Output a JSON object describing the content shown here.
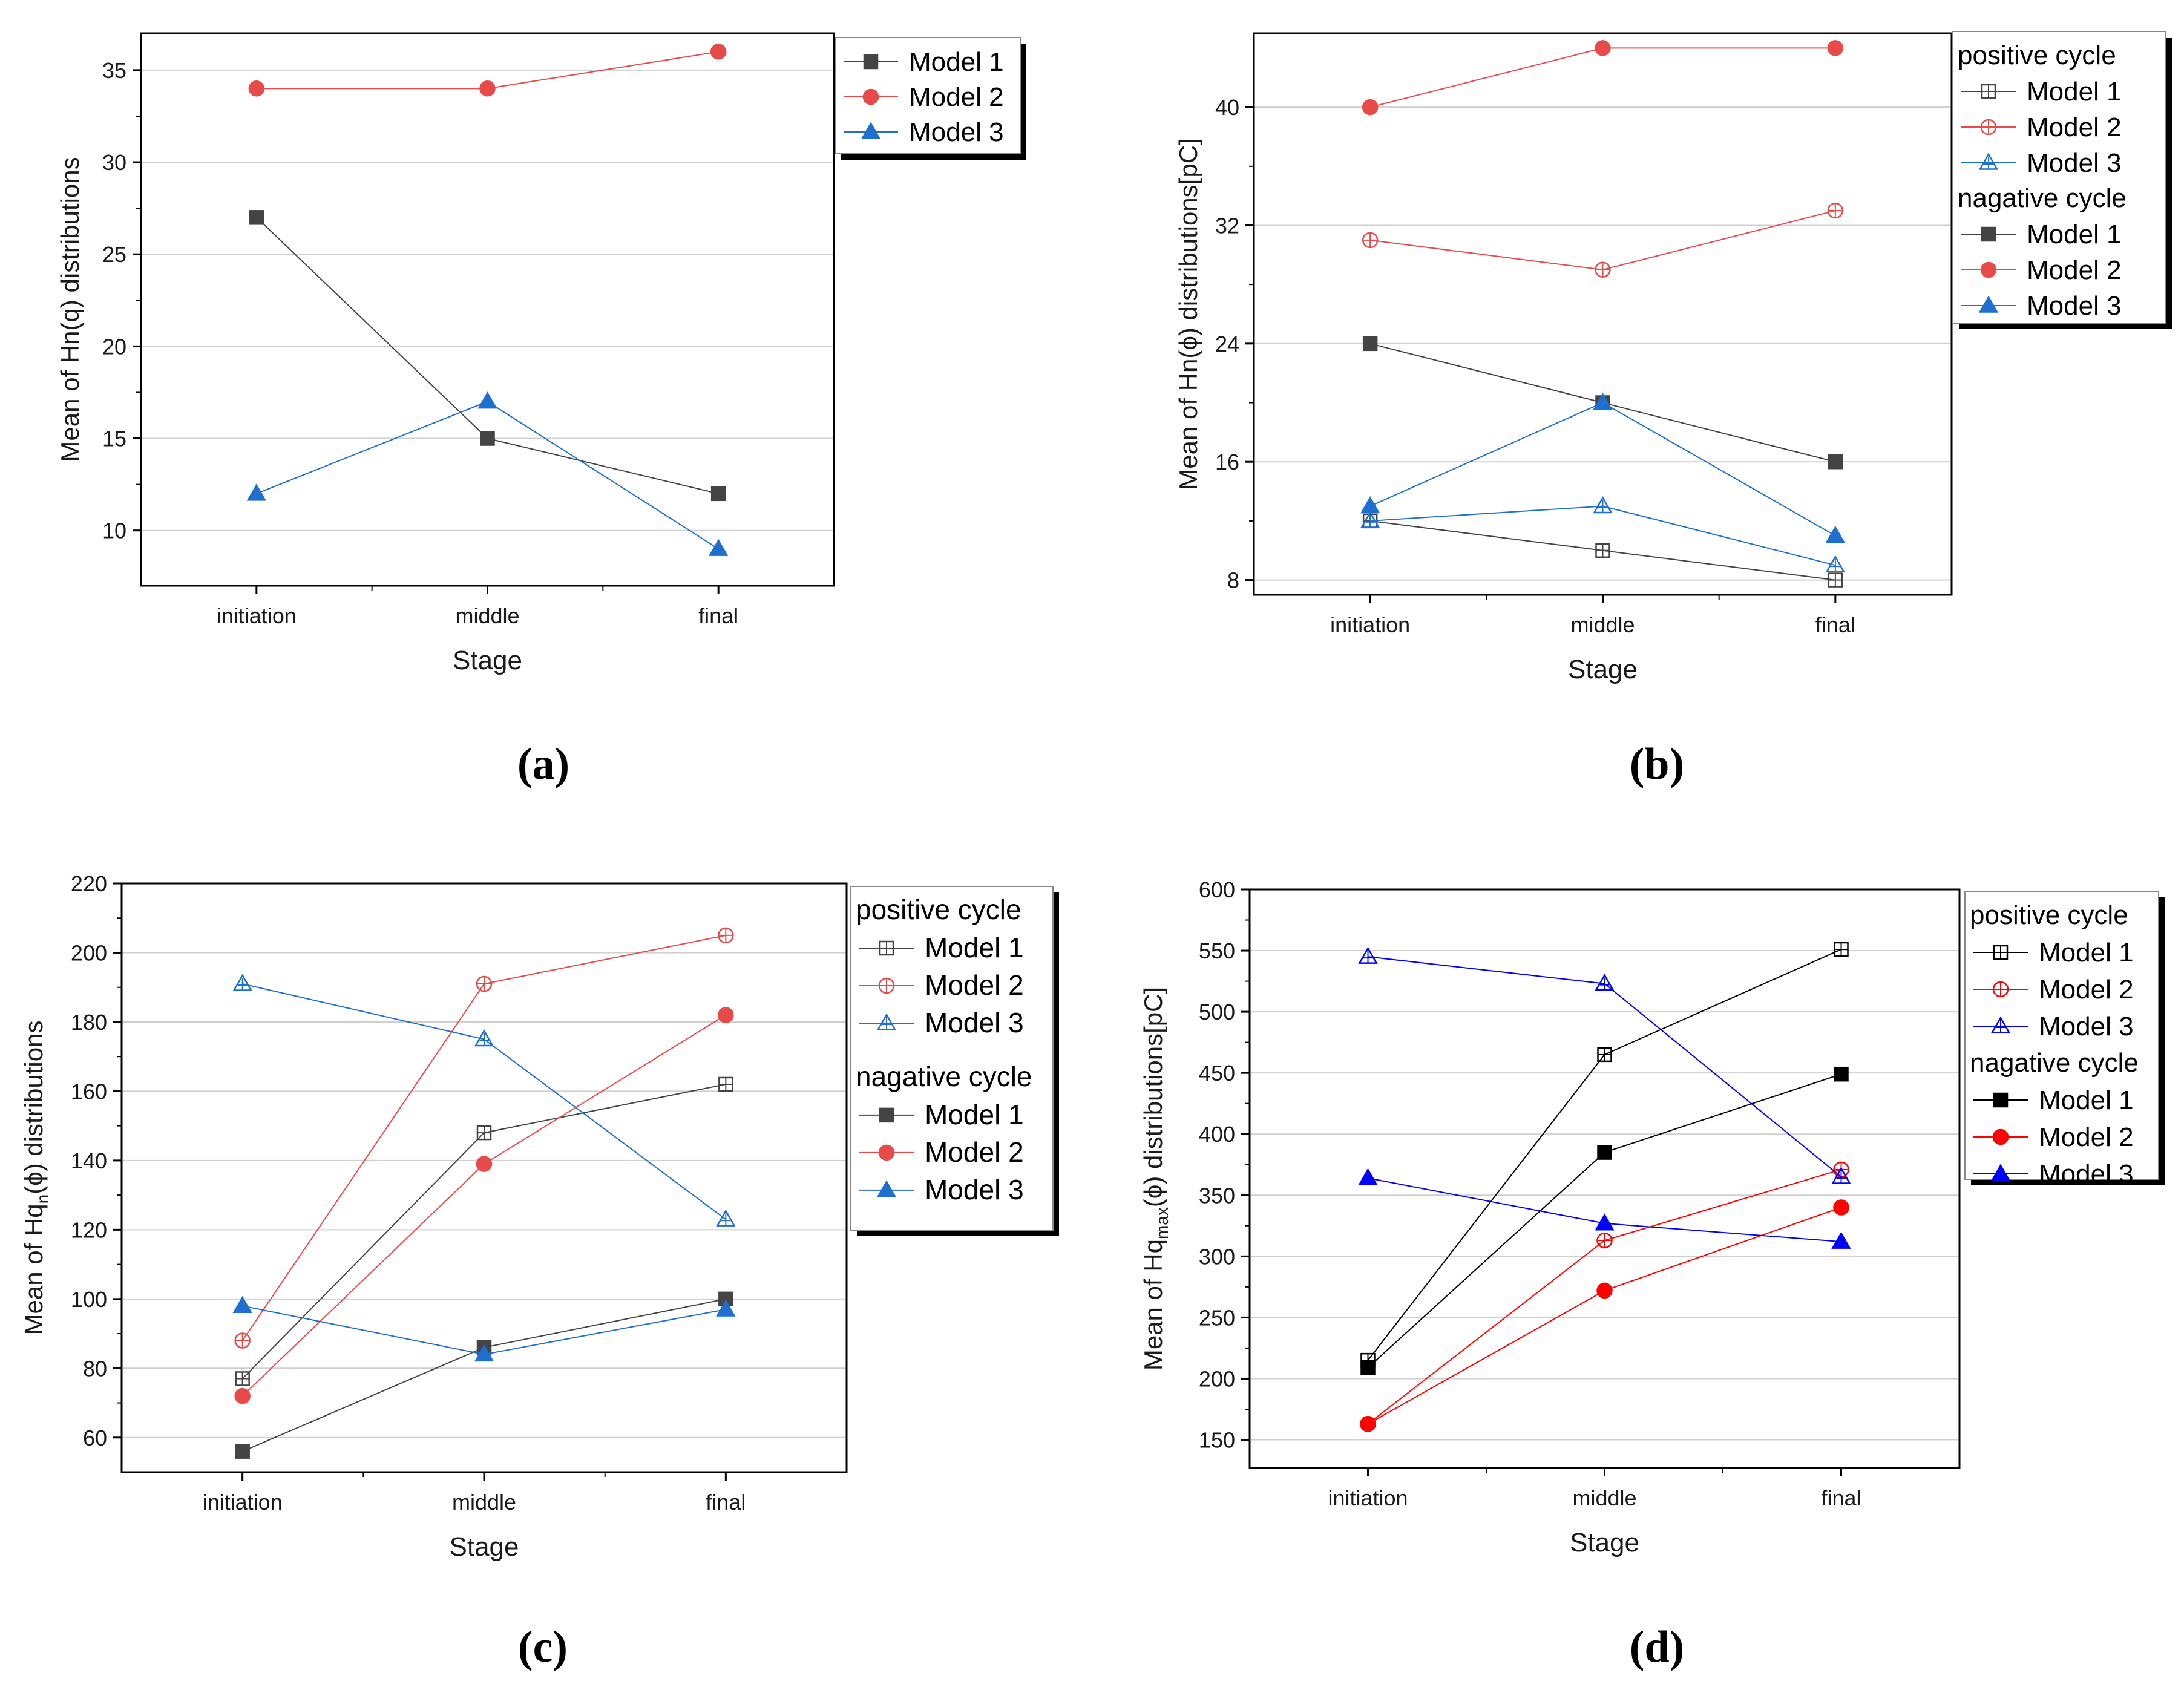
{
  "colors": {
    "model1": "#444444",
    "model1_solid": "#000000",
    "model2": "#e84a4a",
    "model2_solid": "#ff0000",
    "model3": "#1f6fd1",
    "model3_solid": "#0000ff",
    "grid": "#cfcfcf"
  },
  "chart_data": [
    {
      "id": "a",
      "panel_label": "(a)",
      "type": "line",
      "categories": [
        "initiation",
        "middle",
        "final"
      ],
      "xlabel": "Stage",
      "ylabel": "Mean of Hn(q) distributions",
      "ylim": [
        7,
        37
      ],
      "yticks": [
        10,
        15,
        20,
        25,
        30,
        35
      ],
      "legend_groups": [],
      "series": [
        {
          "name": "Model 1",
          "values": [
            27,
            15,
            12
          ],
          "color": "#444444",
          "marker": "square",
          "fill": "solid"
        },
        {
          "name": "Model 2",
          "values": [
            34,
            34,
            36
          ],
          "color": "#e84a4a",
          "marker": "circle",
          "fill": "solid"
        },
        {
          "name": "Model 3",
          "values": [
            12,
            17,
            9
          ],
          "color": "#1f6fd1",
          "marker": "triangle",
          "fill": "solid"
        }
      ]
    },
    {
      "id": "b",
      "panel_label": "(b)",
      "type": "line",
      "categories": [
        "initiation",
        "middle",
        "final"
      ],
      "xlabel": "Stage",
      "ylabel": "Mean of Hn(ϕ) distributions[pC]",
      "ylim": [
        7,
        45
      ],
      "yticks": [
        8,
        16,
        24,
        32,
        40
      ],
      "legend_groups": [
        "positive cycle",
        "nagative cycle"
      ],
      "series": [
        {
          "group": "positive cycle",
          "name": "Model 1",
          "values": [
            12,
            10,
            8
          ],
          "color": "#444444",
          "marker": "square",
          "fill": "open"
        },
        {
          "group": "positive cycle",
          "name": "Model 2",
          "values": [
            31,
            29,
            33
          ],
          "color": "#e84a4a",
          "marker": "circle",
          "fill": "open"
        },
        {
          "group": "positive cycle",
          "name": "Model 3",
          "values": [
            12,
            13,
            9
          ],
          "color": "#1f6fd1",
          "marker": "triangle",
          "fill": "open"
        },
        {
          "group": "nagative cycle",
          "name": "Model 1",
          "values": [
            24,
            20,
            16
          ],
          "color": "#444444",
          "marker": "square",
          "fill": "solid"
        },
        {
          "group": "nagative cycle",
          "name": "Model 2",
          "values": [
            40,
            44,
            44
          ],
          "color": "#e84a4a",
          "marker": "circle",
          "fill": "solid"
        },
        {
          "group": "nagative cycle",
          "name": "Model 3",
          "values": [
            13,
            20,
            11
          ],
          "color": "#1f6fd1",
          "marker": "triangle",
          "fill": "solid"
        }
      ]
    },
    {
      "id": "c",
      "panel_label": "(c)",
      "type": "line",
      "categories": [
        "initiation",
        "middle",
        "final"
      ],
      "xlabel": "Stage",
      "ylabel_main": "Mean of Hq",
      "ylabel_sub": "n",
      "ylabel_tail": "(ϕ) distributions",
      "ylim": [
        50,
        220
      ],
      "yticks": [
        60,
        80,
        100,
        120,
        140,
        160,
        180,
        200,
        220
      ],
      "legend_groups": [
        "positive cycle",
        "nagative cycle"
      ],
      "series": [
        {
          "group": "positive cycle",
          "name": "Model 1",
          "values": [
            77,
            148,
            162
          ],
          "color": "#444444",
          "marker": "square",
          "fill": "open"
        },
        {
          "group": "positive cycle",
          "name": "Model 2",
          "values": [
            88,
            191,
            205
          ],
          "color": "#e84a4a",
          "marker": "circle",
          "fill": "open"
        },
        {
          "group": "positive cycle",
          "name": "Model 3",
          "values": [
            191,
            175,
            123
          ],
          "color": "#1f6fd1",
          "marker": "triangle",
          "fill": "open"
        },
        {
          "group": "nagative cycle",
          "name": "Model 1",
          "values": [
            56,
            86,
            100
          ],
          "color": "#444444",
          "marker": "square",
          "fill": "solid"
        },
        {
          "group": "nagative cycle",
          "name": "Model 2",
          "values": [
            72,
            139,
            182
          ],
          "color": "#e84a4a",
          "marker": "circle",
          "fill": "solid"
        },
        {
          "group": "nagative cycle",
          "name": "Model 3",
          "values": [
            98,
            84,
            97
          ],
          "color": "#1f6fd1",
          "marker": "triangle",
          "fill": "solid"
        }
      ]
    },
    {
      "id": "d",
      "panel_label": "(d)",
      "type": "line",
      "categories": [
        "initiation",
        "middle",
        "final"
      ],
      "xlabel": "Stage",
      "ylabel_main": "Mean of Hq",
      "ylabel_sub": "max",
      "ylabel_tail": "(ϕ) distributions[pC]",
      "ylim": [
        127,
        600
      ],
      "yticks": [
        150,
        200,
        250,
        300,
        350,
        400,
        450,
        500,
        550,
        600
      ],
      "legend_groups": [
        "positive cycle",
        "nagative cycle"
      ],
      "series": [
        {
          "group": "positive cycle",
          "name": "Model 1",
          "values": [
            215,
            465,
            551
          ],
          "color": "#000000",
          "marker": "square",
          "fill": "open"
        },
        {
          "group": "positive cycle",
          "name": "Model 2",
          "values": [
            163,
            313,
            371
          ],
          "color": "#ff0000",
          "marker": "circle",
          "fill": "open"
        },
        {
          "group": "positive cycle",
          "name": "Model 3",
          "values": [
            545,
            523,
            365
          ],
          "color": "#0000ff",
          "marker": "triangle",
          "fill": "open"
        },
        {
          "group": "nagative cycle",
          "name": "Model 1",
          "values": [
            209,
            385,
            449
          ],
          "color": "#000000",
          "marker": "square",
          "fill": "solid"
        },
        {
          "group": "nagative cycle",
          "name": "Model 2",
          "values": [
            163,
            272,
            340
          ],
          "color": "#ff0000",
          "marker": "circle",
          "fill": "solid"
        },
        {
          "group": "nagative cycle",
          "name": "Model 3",
          "values": [
            364,
            327,
            312
          ],
          "color": "#0000ff",
          "marker": "triangle",
          "fill": "solid"
        }
      ]
    }
  ]
}
